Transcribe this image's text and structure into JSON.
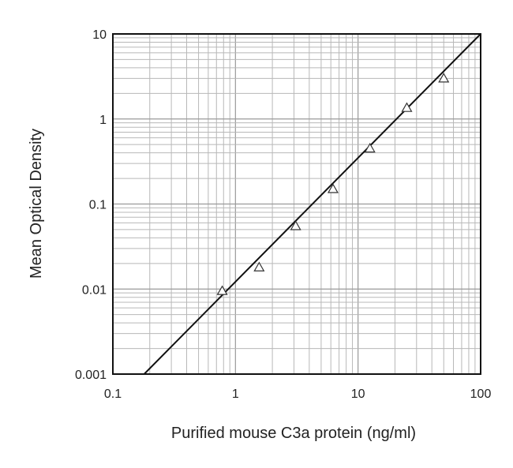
{
  "chart_data": {
    "type": "scatter",
    "xlabel": "Purified mouse C3a protein (ng/ml)",
    "ylabel": "Mean Optical Density",
    "xscale": "log",
    "yscale": "log",
    "xlim": [
      0.1,
      100
    ],
    "ylim": [
      0.001,
      10
    ],
    "x_ticks": [
      0.1,
      1,
      10,
      100
    ],
    "x_tick_labels": [
      "0.1",
      "1",
      "10",
      "100"
    ],
    "y_ticks": [
      0.001,
      0.01,
      0.1,
      1,
      10
    ],
    "y_tick_labels": [
      "0.001",
      "0.01",
      "0.1",
      "1",
      "10"
    ],
    "grid": true,
    "marker": "open-triangle",
    "series": [
      {
        "points": [
          {
            "x": 0.78,
            "y": 0.0095
          },
          {
            "x": 1.56,
            "y": 0.018
          },
          {
            "x": 3.1,
            "y": 0.055
          },
          {
            "x": 6.25,
            "y": 0.15
          },
          {
            "x": 12.5,
            "y": 0.45
          },
          {
            "x": 25,
            "y": 1.35
          },
          {
            "x": 50,
            "y": 3.0
          }
        ]
      }
    ],
    "fit_line": {
      "x": [
        0.18,
        100
      ],
      "y": [
        0.001,
        10
      ]
    }
  }
}
